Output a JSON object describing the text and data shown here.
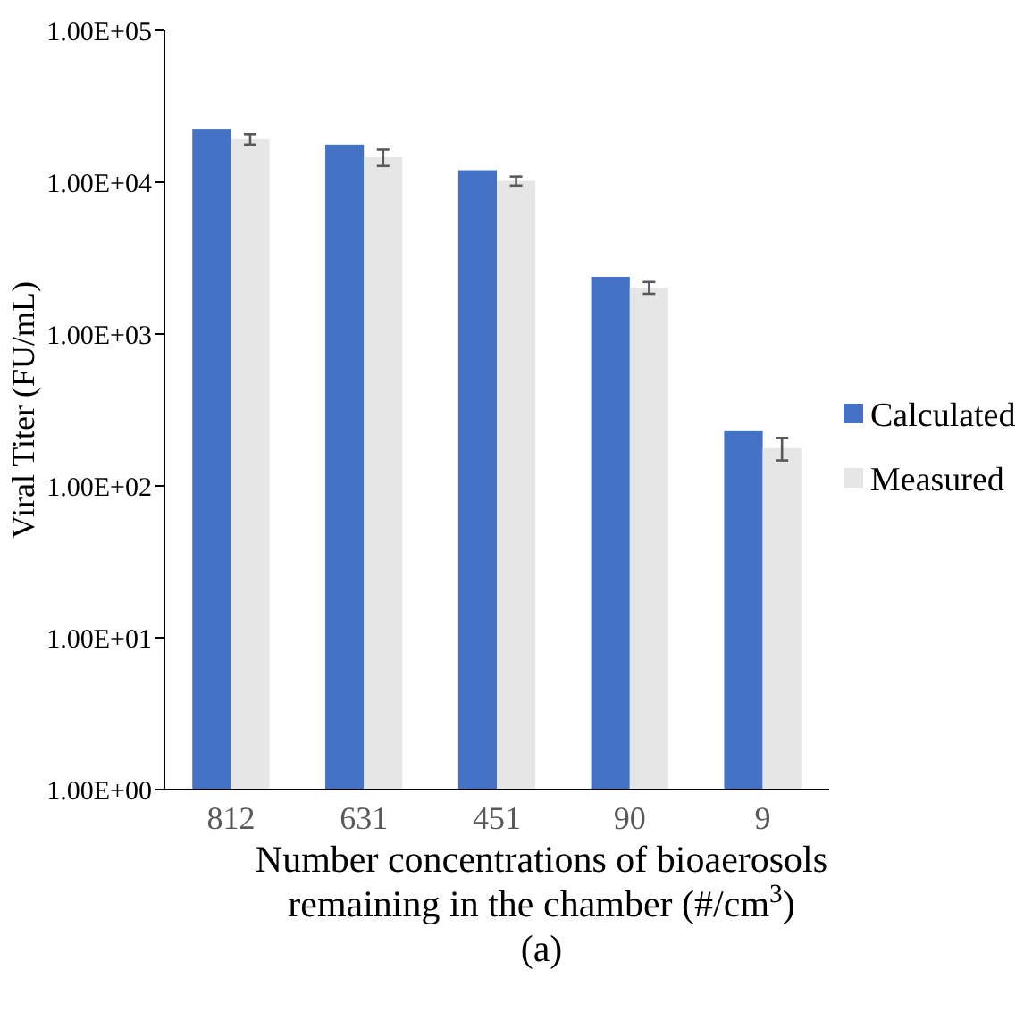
{
  "chart_data": {
    "type": "bar",
    "ylabel": "Viral Titer (FU/mL)",
    "xlabel": "Number concentrations of bioaerosols\nremaining in the chamber (#/cm$^{3}$)",
    "annotations": [
      "(a)"
    ],
    "categories": [
      "812",
      "631",
      "451",
      "90",
      "9"
    ],
    "log": true,
    "ylim": [
      1,
      100000
    ],
    "yticks": [
      {
        "value": 1,
        "label": "1.00E+00"
      },
      {
        "value": 10,
        "label": "1.00E+01"
      },
      {
        "value": 100,
        "label": "1.00E+02"
      },
      {
        "value": 1000,
        "label": "1.00E+03"
      },
      {
        "value": 10000,
        "label": "1.00E+04"
      },
      {
        "value": 100000,
        "label": "1.00E+05"
      }
    ],
    "legend": "right",
    "grid": false,
    "series": [
      {
        "name": "Calculated",
        "color": "#4472c4",
        "values": [
          22500,
          17700,
          12000,
          2380,
          232
        ]
      },
      {
        "name": "Measured",
        "color": "#e7e6e6",
        "values": [
          19200,
          14600,
          10200,
          2020,
          177
        ],
        "errors": [
          1500,
          1800,
          700,
          180,
          30
        ]
      }
    ]
  }
}
